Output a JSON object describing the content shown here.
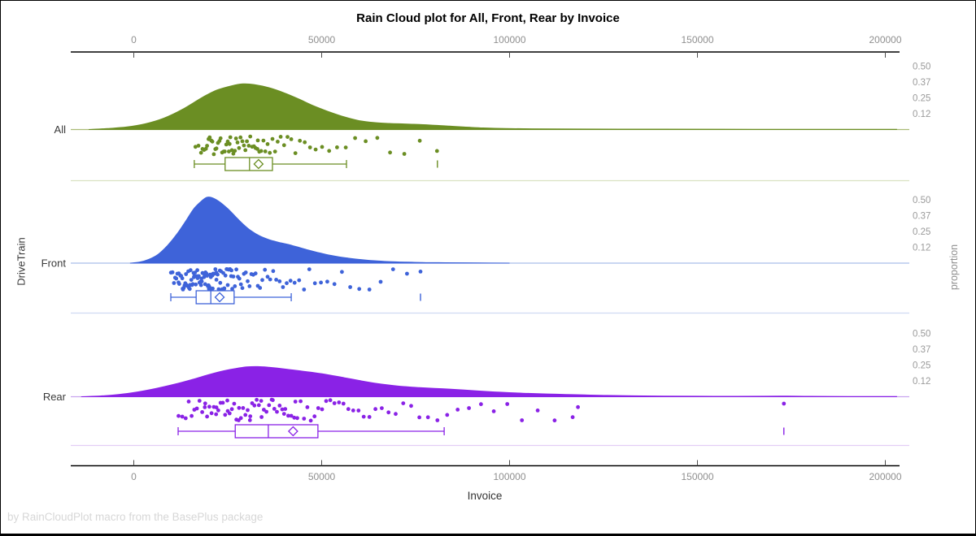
{
  "chart_data": {
    "type": "raincloud",
    "title": "Rain Cloud plot for All, Front, Rear by Invoice",
    "xlabel": "Invoice",
    "ylabel": "DriveTrain",
    "y2label": "proportion",
    "footnote": "by RainCloudPlot macro from the BasePlus package",
    "x_axis": {
      "tick_values": [
        0,
        50000,
        100000,
        150000,
        200000
      ],
      "tick_labels": [
        "0",
        "50000",
        "100000",
        "150000",
        "200000"
      ],
      "range": [
        -16800,
        204000
      ]
    },
    "proportion_axis": {
      "tick_labels": [
        "0.50",
        "0.37",
        "0.25",
        "0.12"
      ],
      "tick_values": [
        0.5,
        0.375,
        0.25,
        0.125
      ]
    },
    "groups": [
      {
        "label": "All",
        "color": "#6B8E23",
        "baseline_color": "#AABC76",
        "divider_color": "#D9E1C1",
        "box": {
          "whisker_low": 16100,
          "q1": 24300,
          "median": 30800,
          "mean": 33200,
          "q3": 36900,
          "whisker_high": 56600,
          "outliers": [
            80800
          ]
        },
        "density": [
          [
            -12000,
            0.0
          ],
          [
            -7000,
            0.008
          ],
          [
            -2000,
            0.02
          ],
          [
            3000,
            0.045
          ],
          [
            8000,
            0.09
          ],
          [
            13000,
            0.16
          ],
          [
            18000,
            0.25
          ],
          [
            22000,
            0.31
          ],
          [
            26000,
            0.345
          ],
          [
            29000,
            0.36
          ],
          [
            32000,
            0.355
          ],
          [
            36000,
            0.33
          ],
          [
            40000,
            0.29
          ],
          [
            44000,
            0.24
          ],
          [
            48000,
            0.185
          ],
          [
            52000,
            0.14
          ],
          [
            56000,
            0.1
          ],
          [
            60000,
            0.07
          ],
          [
            64000,
            0.055
          ],
          [
            68000,
            0.048
          ],
          [
            72000,
            0.044
          ],
          [
            76000,
            0.04
          ],
          [
            80000,
            0.034
          ],
          [
            84000,
            0.027
          ],
          [
            88000,
            0.02
          ],
          [
            93000,
            0.013
          ],
          [
            99000,
            0.008
          ],
          [
            106000,
            0.006
          ],
          [
            120000,
            0.004
          ],
          [
            140000,
            0.003
          ],
          [
            165000,
            0.002
          ],
          [
            190000,
            0.0015
          ],
          [
            203000,
            0.001
          ]
        ],
        "points": [
          16400,
          17200,
          17900,
          18300,
          18700,
          19200,
          19500,
          19900,
          20200,
          20600,
          20900,
          21300,
          21700,
          22000,
          22400,
          22800,
          23100,
          23500,
          23900,
          24200,
          24600,
          25000,
          25300,
          25700,
          26100,
          26500,
          26900,
          27200,
          27600,
          28000,
          28400,
          28900,
          29300,
          29700,
          30100,
          30600,
          31000,
          31500,
          32000,
          32400,
          32900,
          33400,
          33900,
          34500,
          35000,
          35600,
          36200,
          36900,
          37600,
          38300,
          39100,
          40000,
          40900,
          41900,
          43000,
          44200,
          45500,
          46900,
          48400,
          50100,
          52000,
          54100,
          56400,
          58900,
          61700,
          64800,
          68200,
          72000,
          76100,
          80700,
          33000,
          25500
        ]
      },
      {
        "label": "Front",
        "color": "#3E63D9",
        "baseline_color": "#A9BEE9",
        "divider_color": "#CFDAF2",
        "box": {
          "whisker_low": 9850,
          "q1": 16600,
          "median": 20500,
          "mean": 22850,
          "q3": 26700,
          "whisker_high": 41900,
          "outliers": [
            76300
          ]
        },
        "density": [
          [
            -1000,
            0.0
          ],
          [
            1500,
            0.008
          ],
          [
            4000,
            0.03
          ],
          [
            6500,
            0.07
          ],
          [
            9000,
            0.14
          ],
          [
            11500,
            0.23
          ],
          [
            14000,
            0.34
          ],
          [
            16000,
            0.43
          ],
          [
            18000,
            0.49
          ],
          [
            19500,
            0.52
          ],
          [
            21000,
            0.515
          ],
          [
            23000,
            0.48
          ],
          [
            25000,
            0.43
          ],
          [
            27000,
            0.37
          ],
          [
            29000,
            0.31
          ],
          [
            31000,
            0.26
          ],
          [
            33500,
            0.215
          ],
          [
            36000,
            0.185
          ],
          [
            38500,
            0.165
          ],
          [
            41000,
            0.148
          ],
          [
            43500,
            0.128
          ],
          [
            46000,
            0.107
          ],
          [
            48500,
            0.088
          ],
          [
            51000,
            0.07
          ],
          [
            54000,
            0.053
          ],
          [
            57000,
            0.04
          ],
          [
            60500,
            0.028
          ],
          [
            64000,
            0.019
          ],
          [
            68000,
            0.012
          ],
          [
            72500,
            0.008
          ],
          [
            77000,
            0.005
          ],
          [
            83000,
            0.003
          ],
          [
            92000,
            0.0015
          ],
          [
            100000,
            0.0
          ]
        ],
        "points": [
          9900,
          10300,
          10700,
          11000,
          11300,
          11600,
          11900,
          12100,
          12400,
          12600,
          12900,
          13100,
          13300,
          13500,
          13700,
          13900,
          14100,
          14300,
          14500,
          14700,
          14900,
          15100,
          15300,
          15500,
          15700,
          15900,
          16100,
          16300,
          16500,
          16700,
          16900,
          17100,
          17300,
          17500,
          17700,
          17900,
          18100,
          18300,
          18500,
          18700,
          18900,
          19100,
          19300,
          19500,
          19700,
          19900,
          20100,
          20300,
          20500,
          20700,
          20900,
          21100,
          21400,
          21700,
          22000,
          22300,
          22600,
          22900,
          23200,
          23500,
          23800,
          24100,
          24400,
          24700,
          25000,
          25300,
          25600,
          25900,
          26200,
          26500,
          26900,
          27300,
          27700,
          28100,
          28500,
          28900,
          29300,
          29800,
          30300,
          30800,
          31300,
          31800,
          32400,
          33000,
          33600,
          34200,
          34900,
          35600,
          36300,
          37100,
          37900,
          38800,
          39700,
          40700,
          41700,
          42800,
          44000,
          45300,
          46700,
          48200,
          49800,
          51500,
          53400,
          55400,
          57600,
          60000,
          62700,
          65700,
          69000,
          72700,
          76300,
          15000,
          16000,
          17000,
          18000,
          19000,
          20000,
          21000,
          22000,
          13000,
          14000,
          12000,
          23000,
          24000,
          25000,
          26000
        ]
      },
      {
        "label": "Rear",
        "color": "#8A22E6",
        "baseline_color": "#C9A5EF",
        "divider_color": "#E3CEF6",
        "box": {
          "whisker_low": 11800,
          "q1": 27000,
          "median": 35800,
          "mean": 42400,
          "q3": 49000,
          "whisker_high": 82600,
          "outliers": [
            173000
          ]
        },
        "density": [
          [
            -14000,
            0.0
          ],
          [
            -9000,
            0.006
          ],
          [
            -4000,
            0.018
          ],
          [
            1000,
            0.038
          ],
          [
            6000,
            0.066
          ],
          [
            11000,
            0.1
          ],
          [
            16000,
            0.14
          ],
          [
            20000,
            0.175
          ],
          [
            24000,
            0.205
          ],
          [
            27000,
            0.222
          ],
          [
            30000,
            0.235
          ],
          [
            33000,
            0.238
          ],
          [
            36000,
            0.232
          ],
          [
            40000,
            0.22
          ],
          [
            44000,
            0.205
          ],
          [
            48000,
            0.19
          ],
          [
            52000,
            0.172
          ],
          [
            56000,
            0.15
          ],
          [
            60000,
            0.128
          ],
          [
            64000,
            0.108
          ],
          [
            68000,
            0.092
          ],
          [
            72000,
            0.08
          ],
          [
            76000,
            0.072
          ],
          [
            80000,
            0.066
          ],
          [
            84000,
            0.06
          ],
          [
            88000,
            0.053
          ],
          [
            92000,
            0.045
          ],
          [
            96000,
            0.038
          ],
          [
            100000,
            0.032
          ],
          [
            105000,
            0.026
          ],
          [
            110000,
            0.022
          ],
          [
            115000,
            0.018
          ],
          [
            120000,
            0.014
          ],
          [
            126000,
            0.01
          ],
          [
            133000,
            0.007
          ],
          [
            141000,
            0.005
          ],
          [
            150000,
            0.004
          ],
          [
            160000,
            0.0035
          ],
          [
            168000,
            0.004
          ],
          [
            174000,
            0.0045
          ],
          [
            180000,
            0.003
          ],
          [
            190000,
            0.002
          ],
          [
            203000,
            0.001
          ]
        ],
        "points": [
          11900,
          12900,
          13800,
          14600,
          15400,
          16100,
          16800,
          17500,
          18200,
          18900,
          19500,
          20100,
          20700,
          21300,
          21900,
          22500,
          23100,
          23700,
          24300,
          24900,
          25500,
          26100,
          26700,
          27300,
          27900,
          28500,
          29100,
          29700,
          30300,
          30900,
          31500,
          32100,
          32700,
          33300,
          33900,
          34600,
          35300,
          36000,
          36700,
          37400,
          38100,
          38800,
          39500,
          40300,
          41100,
          41900,
          42700,
          43500,
          44400,
          45300,
          46200,
          47100,
          48100,
          49100,
          50100,
          51200,
          52300,
          53400,
          54600,
          55800,
          57100,
          58400,
          59800,
          61200,
          62700,
          64300,
          66000,
          67800,
          69700,
          71700,
          73800,
          76000,
          78300,
          80800,
          83400,
          86200,
          89200,
          92400,
          95800,
          99400,
          103300,
          107500,
          112000,
          116800,
          118200,
          173000,
          28000,
          31000,
          34000,
          37000,
          40000,
          25000,
          22000,
          19000,
          43000
        ]
      }
    ]
  }
}
